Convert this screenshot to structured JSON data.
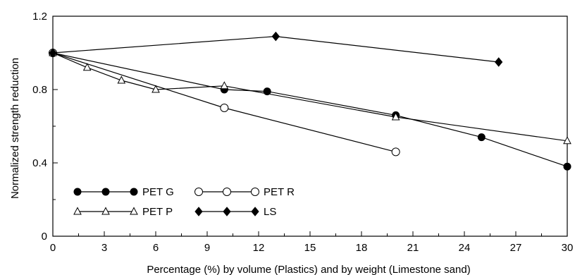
{
  "chart_data": {
    "type": "line",
    "xlabel": "Percentage (%) by volume (Plastics) and by weight (Limestone sand)",
    "ylabel": "Normalized strength reduction",
    "xlim": [
      0,
      30
    ],
    "ylim": [
      0,
      1.2
    ],
    "x_ticks": [
      "0",
      "3",
      "6",
      "9",
      "12",
      "15",
      "18",
      "21",
      "24",
      "27",
      "30"
    ],
    "y_ticks": [
      "0",
      "0.4",
      "0.8",
      "1.2"
    ],
    "grid": false,
    "legend_position": "bottom-left",
    "series": [
      {
        "name": "PET G",
        "marker": "filled-circle",
        "x": [
          0,
          10,
          12.5,
          20,
          25,
          30
        ],
        "y": [
          1.0,
          0.8,
          0.79,
          0.66,
          0.54,
          0.38
        ]
      },
      {
        "name": "PET R",
        "marker": "open-circle",
        "x": [
          0,
          10,
          20
        ],
        "y": [
          1.0,
          0.7,
          0.46
        ]
      },
      {
        "name": "PET P",
        "marker": "open-triangle",
        "x": [
          0,
          2,
          4,
          6,
          10,
          20,
          30
        ],
        "y": [
          1.0,
          0.92,
          0.85,
          0.8,
          0.82,
          0.65,
          0.52
        ]
      },
      {
        "name": "LS",
        "marker": "filled-diamond",
        "x": [
          0,
          13,
          26
        ],
        "y": [
          1.0,
          1.09,
          0.95
        ]
      }
    ],
    "colors": {
      "line": "#000000",
      "background": "#ffffff"
    }
  }
}
